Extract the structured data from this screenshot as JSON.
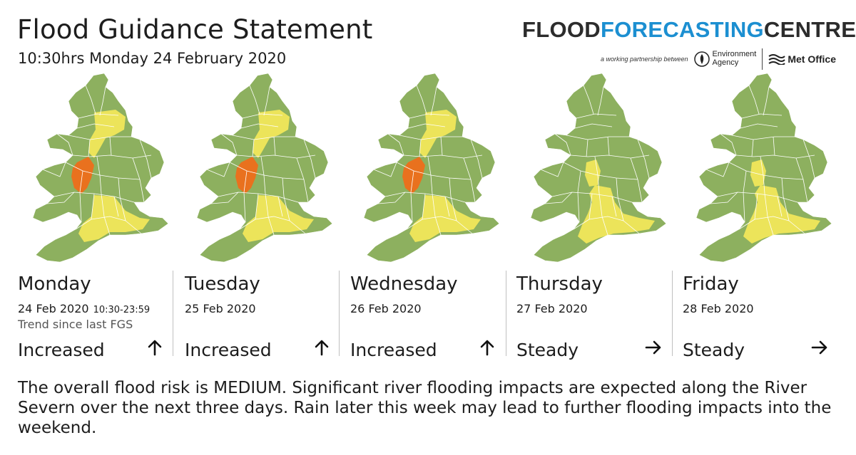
{
  "header": {
    "title": "Flood Guidance Statement",
    "issued": "10:30hrs Monday 24 February 2020"
  },
  "logo": {
    "word_flood": "FLOOD",
    "word_forecasting": "FORECASTING",
    "word_centre": "CENTRE",
    "tagline": "a working partnership between",
    "partner1_line1": "Environment",
    "partner1_line2": "Agency",
    "partner2": "Met Office"
  },
  "colors": {
    "very_low": "#8db05f",
    "low": "#ece45a",
    "medium": "#e9711e"
  },
  "days": [
    {
      "day": "Monday",
      "date": "24 Feb 2020",
      "time": "10:30-23:59",
      "trend_label": "Trend since last FGS",
      "trend": "Increased",
      "arrow": "up-arrow-icon"
    },
    {
      "day": "Tuesday",
      "date": "25 Feb 2020",
      "time": "",
      "trend_label": "",
      "trend": "Increased",
      "arrow": "up-arrow-icon"
    },
    {
      "day": "Wednesday",
      "date": "26 Feb 2020",
      "time": "",
      "trend_label": "",
      "trend": "Increased",
      "arrow": "up-arrow-icon"
    },
    {
      "day": "Thursday",
      "date": "27 Feb 2020",
      "time": "",
      "trend_label": "",
      "trend": "Steady",
      "arrow": "right-arrow-icon"
    },
    {
      "day": "Friday",
      "date": "28 Feb 2020",
      "time": "",
      "trend_label": "",
      "trend": "Steady",
      "arrow": "right-arrow-icon"
    }
  ],
  "summary": "The overall flood risk is MEDIUM. Significant river flooding impacts are expected along the River Severn over the next three days. Rain later this week may lead to further flooding impacts into the weekend."
}
